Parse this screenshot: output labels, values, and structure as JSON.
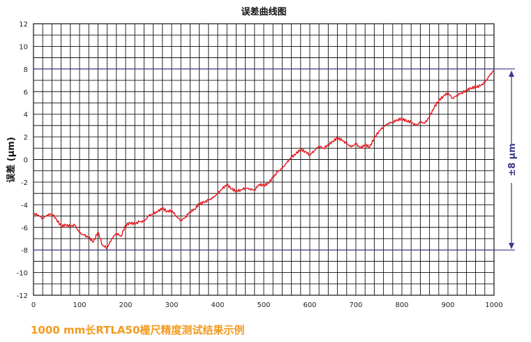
{
  "caption": "1000 mm长RTLA50栅尺精度测试结果示例",
  "colors": {
    "line": "#e8141b",
    "grid": "#111111",
    "refline": "#3a3a8c",
    "caption": "#f29a1f"
  },
  "chart_data": {
    "type": "line",
    "title": "误差曲线图",
    "xlabel": "",
    "ylabel": "误差 (µm)",
    "xlim": [
      0,
      1000
    ],
    "ylim": [
      -12,
      12
    ],
    "x_ticks": [
      0,
      100,
      200,
      300,
      400,
      500,
      600,
      700,
      800,
      900,
      1000
    ],
    "y_ticks": [
      12,
      10,
      8,
      6,
      4,
      2,
      0,
      -2,
      -4,
      -6,
      -8,
      -10,
      -12
    ],
    "x_tick_labels": [
      "0",
      "100",
      "200",
      "300",
      "400",
      "500",
      "600",
      "700",
      "800",
      "900",
      "1000"
    ],
    "y_tick_labels": [
      "12",
      "10",
      "8",
      "6",
      "4",
      "2",
      "0",
      "-2",
      "-4",
      "-6",
      "-8",
      "-10",
      "-12"
    ],
    "grid": true,
    "series": [
      {
        "x": [
          0,
          10,
          20,
          30,
          40,
          50,
          60,
          70,
          80,
          90,
          100,
          110,
          120,
          130,
          140,
          150,
          160,
          170,
          180,
          190,
          200,
          210,
          220,
          230,
          240,
          250,
          260,
          270,
          280,
          290,
          300,
          310,
          320,
          330,
          340,
          350,
          360,
          370,
          380,
          390,
          400,
          410,
          420,
          430,
          440,
          450,
          460,
          470,
          480,
          490,
          500,
          510,
          520,
          530,
          540,
          550,
          560,
          570,
          580,
          590,
          600,
          610,
          620,
          630,
          640,
          650,
          660,
          670,
          680,
          690,
          700,
          710,
          720,
          730,
          740,
          750,
          760,
          770,
          780,
          790,
          800,
          810,
          820,
          830,
          840,
          850,
          860,
          870,
          880,
          890,
          900,
          910,
          920,
          930,
          940,
          950,
          960,
          970,
          980,
          990,
          1000
        ],
        "values": [
          -4.8,
          -4.9,
          -5.2,
          -4.9,
          -4.8,
          -5.3,
          -5.9,
          -5.8,
          -5.9,
          -5.8,
          -6.5,
          -6.7,
          -6.9,
          -7.3,
          -6.4,
          -7.6,
          -7.8,
          -7.0,
          -6.5,
          -6.8,
          -5.8,
          -5.6,
          -5.7,
          -5.5,
          -5.5,
          -5.0,
          -4.8,
          -4.6,
          -4.3,
          -4.6,
          -4.5,
          -5.0,
          -5.4,
          -5.1,
          -4.6,
          -4.4,
          -3.9,
          -3.8,
          -3.6,
          -3.4,
          -3.0,
          -2.6,
          -2.2,
          -2.6,
          -2.8,
          -2.7,
          -2.5,
          -2.6,
          -2.7,
          -2.2,
          -2.3,
          -2.1,
          -1.6,
          -1.1,
          -0.8,
          -0.3,
          0.2,
          0.5,
          0.9,
          0.7,
          0.4,
          0.8,
          1.2,
          1.0,
          1.3,
          1.6,
          1.9,
          1.7,
          1.4,
          1.1,
          1.4,
          1.0,
          1.3,
          1.1,
          1.9,
          2.5,
          2.9,
          3.2,
          3.3,
          3.5,
          3.6,
          3.4,
          3.3,
          3.0,
          3.3,
          3.2,
          3.8,
          4.6,
          5.2,
          5.6,
          5.9,
          5.4,
          5.7,
          5.9,
          6.1,
          6.3,
          6.4,
          6.5,
          6.8,
          7.4,
          7.9
        ],
        "color": "#e8141b"
      }
    ],
    "reference_lines": [
      8,
      -8
    ],
    "range_annotation": "±8 µm"
  }
}
